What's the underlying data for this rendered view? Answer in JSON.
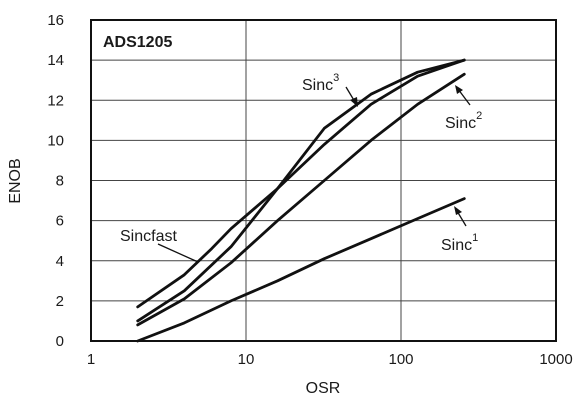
{
  "chart_data": {
    "type": "line",
    "title": "ADS1205",
    "xlabel": "OSR",
    "ylabel": "ENOB",
    "x_scale": "log",
    "xlim": [
      1,
      1000
    ],
    "ylim": [
      0,
      16
    ],
    "x_ticks": [
      1,
      10,
      100,
      1000
    ],
    "y_ticks": [
      0,
      2,
      4,
      6,
      8,
      10,
      12,
      14,
      16
    ],
    "grid": true,
    "series": [
      {
        "name": "Sinc",
        "order": "1",
        "x": [
          2,
          4,
          8,
          16,
          32,
          64,
          128,
          256
        ],
        "y": [
          0.0,
          0.9,
          2.0,
          3.0,
          4.1,
          5.1,
          6.1,
          7.1
        ]
      },
      {
        "name": "Sinc",
        "order": "2",
        "x": [
          2,
          4,
          8,
          16,
          32,
          64,
          128,
          256
        ],
        "y": [
          0.8,
          2.1,
          3.9,
          6.0,
          8.0,
          10.0,
          11.8,
          13.3
        ]
      },
      {
        "name": "Sinc",
        "order": "3",
        "x": [
          2,
          4,
          8,
          16,
          32,
          64,
          128,
          256
        ],
        "y": [
          1.0,
          2.5,
          4.7,
          7.6,
          9.8,
          11.8,
          13.2,
          14.0
        ]
      },
      {
        "name": "Sincfast",
        "x": [
          2,
          4,
          6,
          8,
          16,
          32,
          64,
          128,
          256
        ],
        "y": [
          1.7,
          3.3,
          4.6,
          5.6,
          7.6,
          10.6,
          12.3,
          13.4,
          14.0
        ]
      }
    ]
  }
}
